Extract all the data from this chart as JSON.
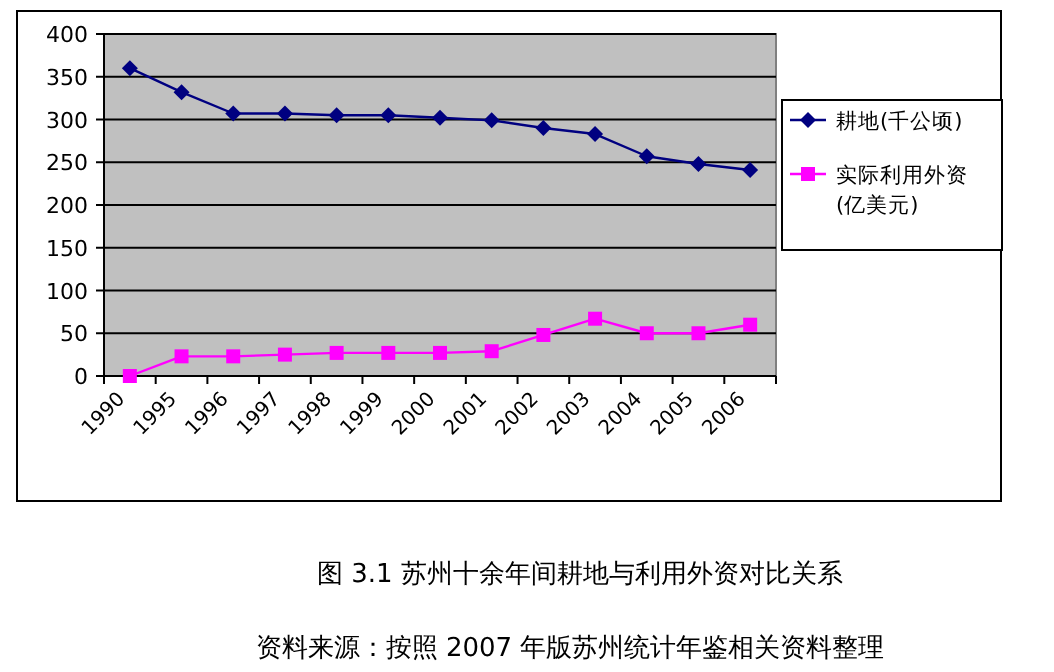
{
  "chart_data": {
    "type": "line",
    "title": "图 3.1 苏州十余年间耕地与利用外资对比关系",
    "annotations": [
      "资料来源：按照 2007 年版苏州统计年鉴相关资料整理"
    ],
    "categories": [
      "1990",
      "1995",
      "1996",
      "1997",
      "1998",
      "1999",
      "2000",
      "2001",
      "2002",
      "2003",
      "2004",
      "2005",
      "2006"
    ],
    "series": [
      {
        "name": "耕地(千公顷)",
        "color": "#000080",
        "marker": "diamond",
        "values": [
          360,
          332,
          307,
          307,
          305,
          305,
          302,
          299,
          290,
          283,
          257,
          248,
          241
        ]
      },
      {
        "name": "实际利用外资(亿美元)",
        "color": "#ff00ff",
        "marker": "square",
        "values": [
          0,
          23,
          23,
          25,
          27,
          27,
          27,
          29,
          48,
          67,
          50,
          50,
          60
        ]
      }
    ],
    "ylim": [
      0,
      400
    ],
    "yticks": [
      0,
      50,
      100,
      150,
      200,
      250,
      300,
      350,
      400
    ],
    "grid": "y",
    "legend": "right"
  }
}
